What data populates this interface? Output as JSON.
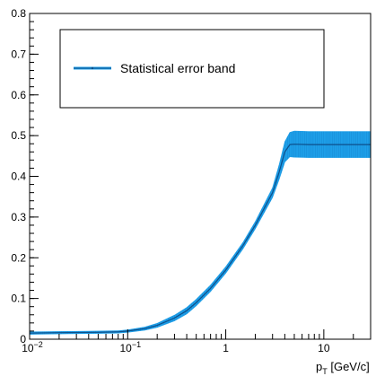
{
  "chart_data": {
    "type": "line",
    "title": "",
    "xlabel": "p_T [GeV/c]",
    "xlabel_main": "p",
    "xlabel_sub": "T",
    "xlabel_rest": " [GeV/c]",
    "ylabel": "",
    "xscale": "log",
    "xlim": [
      0.01,
      30
    ],
    "ylim": [
      0,
      0.8
    ],
    "grid": false,
    "legend_position": "top-left",
    "y_ticks": [
      {
        "value": 0,
        "label": "0"
      },
      {
        "value": 0.1,
        "label": "0.1"
      },
      {
        "value": 0.2,
        "label": "0.2"
      },
      {
        "value": 0.3,
        "label": "0.3"
      },
      {
        "value": 0.4,
        "label": "0.4"
      },
      {
        "value": 0.5,
        "label": "0.5"
      },
      {
        "value": 0.6,
        "label": "0.6"
      },
      {
        "value": 0.7,
        "label": "0.7"
      },
      {
        "value": 0.8,
        "label": "0.8"
      }
    ],
    "x_ticks": [
      {
        "value": 0.01,
        "base": "10",
        "exp": "−2"
      },
      {
        "value": 0.1,
        "base": "10",
        "exp": "−1"
      },
      {
        "value": 1,
        "base": "1",
        "exp": ""
      },
      {
        "value": 10,
        "base": "10",
        "exp": ""
      }
    ],
    "series": [
      {
        "name": "Statistical error band",
        "color": "#1e9fe8",
        "line_color": "#0d4f8a",
        "x": [
          0.01,
          0.02,
          0.05,
          0.08,
          0.1,
          0.15,
          0.2,
          0.3,
          0.4,
          0.5,
          0.7,
          1.0,
          1.5,
          2.0,
          3.0,
          3.5,
          4.0,
          4.5,
          5,
          7,
          10,
          15,
          20,
          30
        ],
        "y": [
          0.015,
          0.016,
          0.017,
          0.018,
          0.02,
          0.026,
          0.034,
          0.052,
          0.07,
          0.09,
          0.125,
          0.17,
          0.23,
          0.28,
          0.36,
          0.41,
          0.46,
          0.478,
          0.479,
          0.478,
          0.478,
          0.478,
          0.478,
          0.478
        ],
        "err": [
          0.003,
          0.003,
          0.003,
          0.003,
          0.003,
          0.004,
          0.005,
          0.007,
          0.008,
          0.008,
          0.008,
          0.008,
          0.008,
          0.009,
          0.012,
          0.018,
          0.025,
          0.03,
          0.032,
          0.032,
          0.032,
          0.032,
          0.032,
          0.032
        ]
      }
    ]
  }
}
